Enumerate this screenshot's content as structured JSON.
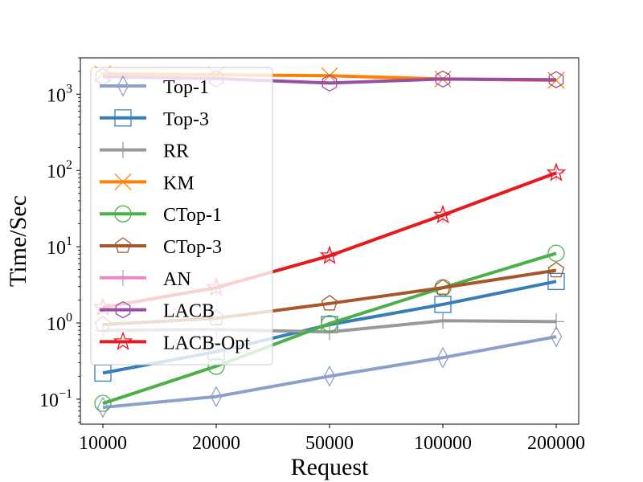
{
  "chart_data": {
    "type": "line",
    "xscale": "categorical",
    "yscale": "log",
    "xlabel": "Request",
    "ylabel": "Time/Sec",
    "title": "",
    "categories": [
      "10000",
      "20000",
      "50000",
      "100000",
      "200000"
    ],
    "ylim": [
      0.047,
      3000
    ],
    "y_ticks": [
      {
        "base": "10",
        "exp": "−1",
        "value": 0.1
      },
      {
        "base": "10",
        "exp": "0",
        "value": 1
      },
      {
        "base": "10",
        "exp": "1",
        "value": 10
      },
      {
        "base": "10",
        "exp": "2",
        "value": 100
      },
      {
        "base": "10",
        "exp": "3",
        "value": 1000
      }
    ],
    "legend_position": "upper-left",
    "series": [
      {
        "name": "Top-1",
        "color": "#8da0cb",
        "marker": "thin_diamond",
        "values": [
          0.078,
          0.108,
          0.2,
          0.35,
          0.66
        ]
      },
      {
        "name": "Top-3",
        "color": "#377eb8",
        "marker": "square",
        "values": [
          0.22,
          0.42,
          0.95,
          1.75,
          3.5
        ]
      },
      {
        "name": "RR",
        "color": "#999999",
        "marker": "plus",
        "values": [
          0.8,
          0.82,
          0.76,
          1.07,
          1.04
        ]
      },
      {
        "name": "KM",
        "color": "#ff7f00",
        "marker": "x",
        "values": [
          1850,
          1800,
          1750,
          1580,
          1520
        ]
      },
      {
        "name": "CTop-1",
        "color": "#4daf4a",
        "marker": "circle",
        "values": [
          0.088,
          0.27,
          0.98,
          2.9,
          8.2
        ]
      },
      {
        "name": "CTop-3",
        "color": "#a65628",
        "marker": "pentagon",
        "values": [
          0.95,
          1.15,
          1.8,
          2.9,
          4.9
        ]
      },
      {
        "name": "AN",
        "color": "#e78ac3",
        "marker": "plus",
        "values": [
          1.6,
          2.9,
          7.6,
          26,
          93
        ]
      },
      {
        "name": "LACB",
        "color": "#984ea3",
        "marker": "hexagon",
        "values": [
          1700,
          1600,
          1400,
          1580,
          1550
        ]
      },
      {
        "name": "LACB-Opt",
        "color": "#e41a1c",
        "marker": "star",
        "values": [
          1.6,
          2.9,
          7.6,
          26,
          93
        ]
      }
    ]
  }
}
